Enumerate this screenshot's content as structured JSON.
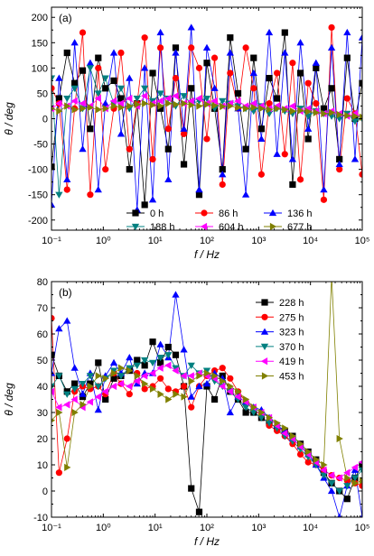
{
  "chart_data": [
    {
      "type": "line",
      "panel_label": "(a)",
      "xlabel": "f / Hz",
      "ylabel": "θ / deg",
      "xscale": "log",
      "xlim": [
        0.1,
        100000
      ],
      "ylim": [
        -220,
        220
      ],
      "yticks": [
        -200,
        -150,
        -100,
        -50,
        0,
        50,
        100,
        150,
        200
      ],
      "xtick_labels": [
        "10⁻¹",
        "10⁰",
        "10¹",
        "10²",
        "10³",
        "10⁴",
        "10⁵"
      ],
      "legend_position": "bottom-right",
      "legend_columns": 3,
      "series": [
        {
          "name": "0 h",
          "color": "#000000",
          "marker": "square",
          "x": [
            0.1,
            0.14,
            0.2,
            0.28,
            0.4,
            0.56,
            0.8,
            1.1,
            1.6,
            2.2,
            3.2,
            4.5,
            6.3,
            9,
            12.7,
            18,
            25,
            36,
            50,
            71,
            100,
            141,
            200,
            282,
            400,
            565,
            800,
            1130,
            1600,
            2260,
            3200,
            4520,
            6400,
            9050,
            12800,
            18100,
            25600,
            36200,
            51200,
            72400,
            100000
          ],
          "y": [
            -95,
            40,
            130,
            70,
            95,
            -20,
            120,
            60,
            75,
            40,
            -100,
            30,
            -170,
            90,
            20,
            -60,
            140,
            -90,
            60,
            -150,
            110,
            20,
            -100,
            160,
            50,
            -60,
            120,
            -20,
            80,
            40,
            170,
            -130,
            90,
            -40,
            100,
            20,
            60,
            -80,
            120,
            0,
            70
          ]
        },
        {
          "name": "86 h",
          "color": "#ff0000",
          "marker": "circle",
          "x": [
            0.1,
            0.14,
            0.2,
            0.28,
            0.4,
            0.56,
            0.8,
            1.1,
            1.6,
            2.2,
            3.2,
            4.5,
            6.3,
            9,
            12.7,
            18,
            25,
            36,
            50,
            71,
            100,
            141,
            200,
            282,
            400,
            565,
            800,
            1130,
            1600,
            2260,
            3200,
            4520,
            6400,
            9050,
            12800,
            18100,
            25600,
            36200,
            51200,
            72400,
            100000
          ],
          "y": [
            60,
            30,
            -140,
            20,
            170,
            -150,
            100,
            -100,
            20,
            130,
            -60,
            30,
            160,
            -80,
            140,
            -20,
            80,
            -30,
            140,
            100,
            -40,
            120,
            -130,
            90,
            20,
            140,
            60,
            -110,
            30,
            90,
            -70,
            110,
            -120,
            70,
            30,
            -160,
            180,
            -100,
            40,
            10,
            -110
          ]
        },
        {
          "name": "136 h",
          "color": "#0000ff",
          "marker": "triangle-up",
          "x": [
            0.1,
            0.14,
            0.2,
            0.28,
            0.4,
            0.56,
            0.8,
            1.1,
            1.6,
            2.2,
            3.2,
            4.5,
            6.3,
            9,
            12.7,
            18,
            25,
            36,
            50,
            71,
            100,
            141,
            200,
            282,
            400,
            565,
            800,
            1130,
            1600,
            2260,
            3200,
            4520,
            6400,
            9050,
            12800,
            18100,
            25600,
            36200,
            51200,
            72400,
            100000
          ],
          "y": [
            -170,
            80,
            -120,
            150,
            -60,
            110,
            -140,
            30,
            130,
            -30,
            80,
            -180,
            100,
            -160,
            170,
            -120,
            130,
            -20,
            180,
            -140,
            140,
            60,
            -110,
            130,
            20,
            -150,
            90,
            -40,
            170,
            -70,
            130,
            -80,
            150,
            -20,
            110,
            -140,
            140,
            -90,
            170,
            -80,
            160
          ]
        },
        {
          "name": "188 h",
          "color": "#008080",
          "marker": "triangle-down",
          "x": [
            0.1,
            0.14,
            0.2,
            0.28,
            0.4,
            0.56,
            0.8,
            1.1,
            1.6,
            2.2,
            3.2,
            4.5,
            6.3,
            9,
            12.7,
            18,
            25,
            36,
            50,
            71,
            100,
            141,
            200,
            282,
            400,
            565,
            800,
            1130,
            1600,
            2260,
            3200,
            4520,
            6400,
            9050,
            12800,
            18100,
            25600,
            36200,
            51200,
            72400,
            100000
          ],
          "y": [
            80,
            -150,
            40,
            60,
            20,
            100,
            50,
            80,
            30,
            60,
            20,
            40,
            60,
            35,
            50,
            40,
            25,
            45,
            30,
            35,
            40,
            20,
            35,
            30,
            25,
            20,
            15,
            25,
            10,
            20,
            15,
            10,
            20,
            5,
            15,
            10,
            5,
            0,
            10,
            -5,
            0
          ]
        },
        {
          "name": "604 h",
          "color": "#ff00ff",
          "marker": "triangle-left",
          "x": [
            0.1,
            0.14,
            0.2,
            0.28,
            0.4,
            0.56,
            0.8,
            1.1,
            1.6,
            2.2,
            3.2,
            4.5,
            6.3,
            9,
            12.7,
            18,
            25,
            36,
            50,
            71,
            100,
            141,
            200,
            282,
            400,
            565,
            800,
            1130,
            1600,
            2260,
            3200,
            4520,
            6400,
            9050,
            12800,
            18100,
            25600,
            36200,
            51200,
            72400,
            100000
          ],
          "y": [
            20,
            30,
            25,
            35,
            30,
            25,
            40,
            20,
            35,
            30,
            40,
            25,
            45,
            30,
            35,
            40,
            45,
            30,
            35,
            40,
            30,
            35,
            25,
            30,
            35,
            25,
            30,
            25,
            20,
            25,
            20,
            25,
            15,
            20,
            15,
            10,
            15,
            10,
            5,
            10,
            5
          ]
        },
        {
          "name": "677 h",
          "color": "#808000",
          "marker": "triangle-right",
          "x": [
            0.1,
            0.14,
            0.2,
            0.28,
            0.4,
            0.56,
            0.8,
            1.1,
            1.6,
            2.2,
            3.2,
            4.5,
            6.3,
            9,
            12.7,
            18,
            25,
            36,
            50,
            71,
            100,
            141,
            200,
            282,
            400,
            565,
            800,
            1130,
            1600,
            2260,
            3200,
            4520,
            6400,
            9050,
            12800,
            18100,
            25600,
            36200,
            51200,
            72400,
            100000
          ],
          "y": [
            20,
            15,
            25,
            18,
            20,
            22,
            18,
            20,
            25,
            22,
            25,
            28,
            30,
            27,
            25,
            30,
            28,
            30,
            27,
            25,
            28,
            26,
            24,
            25,
            22,
            20,
            22,
            20,
            18,
            20,
            18,
            15,
            16,
            14,
            12,
            10,
            12,
            8,
            6,
            5,
            3
          ]
        }
      ]
    },
    {
      "type": "line",
      "panel_label": "(b)",
      "xlabel": "f / Hz",
      "ylabel": "θ / deg",
      "xscale": "log",
      "xlim": [
        0.1,
        100000
      ],
      "ylim": [
        -10,
        80
      ],
      "yticks": [
        -10,
        0,
        10,
        20,
        30,
        40,
        50,
        60,
        70,
        80
      ],
      "xtick_labels": [
        "10⁻¹",
        "10⁰",
        "10¹",
        "10²",
        "10³",
        "10⁴",
        "10⁵"
      ],
      "legend_position": "top-right",
      "legend_columns": 1,
      "series": [
        {
          "name": "228 h",
          "color": "#000000",
          "marker": "square",
          "x": [
            0.1,
            0.14,
            0.2,
            0.28,
            0.4,
            0.56,
            0.8,
            1.1,
            1.6,
            2.2,
            3.2,
            4.5,
            6.3,
            9,
            12.7,
            18,
            25,
            36,
            50,
            71,
            100,
            141,
            200,
            282,
            400,
            565,
            800,
            1130,
            1600,
            2260,
            3200,
            4520,
            6400,
            9050,
            12800,
            18100,
            25600,
            36200,
            51200,
            72400,
            100000
          ],
          "y": [
            52,
            44,
            38,
            41,
            36,
            41,
            49,
            35,
            43,
            44,
            46,
            50,
            48,
            57,
            49,
            55,
            52,
            40,
            1,
            -8,
            40,
            35,
            44,
            38,
            35,
            30,
            30,
            28,
            26,
            24,
            23,
            21,
            18,
            15,
            12,
            7,
            3,
            0,
            -3,
            5,
            10
          ]
        },
        {
          "name": "275 h",
          "color": "#ff0000",
          "marker": "circle",
          "x": [
            0.1,
            0.14,
            0.2,
            0.28,
            0.4,
            0.56,
            0.8,
            1.1,
            1.6,
            2.2,
            3.2,
            4.5,
            6.3,
            9,
            12.7,
            18,
            25,
            36,
            50,
            71,
            100,
            141,
            200,
            282,
            400,
            565,
            800,
            1130,
            1600,
            2260,
            3200,
            4520,
            6400,
            9050,
            12800,
            18100,
            25600,
            36200,
            51200,
            72400,
            100000
          ],
          "y": [
            66,
            7,
            20,
            38,
            40,
            39,
            40,
            37,
            45,
            41,
            37,
            45,
            39,
            40,
            43,
            39,
            38,
            40,
            32,
            40,
            44,
            46,
            47,
            43,
            38,
            34,
            31,
            29,
            25,
            23,
            21,
            18,
            14,
            11,
            10,
            8,
            6,
            5,
            4,
            3,
            2
          ]
        },
        {
          "name": "323 h",
          "color": "#0000ff",
          "marker": "triangle-up",
          "x": [
            0.1,
            0.14,
            0.2,
            0.28,
            0.4,
            0.56,
            0.8,
            1.1,
            1.6,
            2.2,
            3.2,
            4.5,
            6.3,
            9,
            12.7,
            18,
            25,
            36,
            50,
            71,
            100,
            141,
            200,
            282,
            400,
            565,
            800,
            1130,
            1600,
            2260,
            3200,
            4520,
            6400,
            9050,
            12800,
            18100,
            25600,
            36200,
            51200,
            72400,
            100000
          ],
          "y": [
            45,
            62,
            65,
            47,
            37,
            45,
            31,
            44,
            49,
            45,
            51,
            41,
            45,
            45,
            56,
            51,
            75,
            54,
            36,
            40,
            41,
            45,
            43,
            30,
            36,
            34,
            32,
            31,
            28,
            25,
            23,
            20,
            17,
            14,
            10,
            5,
            0,
            -10,
            2,
            8,
            -10
          ]
        },
        {
          "name": "370 h",
          "color": "#008080",
          "marker": "triangle-down",
          "x": [
            0.1,
            0.14,
            0.2,
            0.28,
            0.4,
            0.56,
            0.8,
            1.1,
            1.6,
            2.2,
            3.2,
            4.5,
            6.3,
            9,
            12.7,
            18,
            25,
            36,
            50,
            71,
            100,
            141,
            200,
            282,
            400,
            565,
            800,
            1130,
            1600,
            2260,
            3200,
            4520,
            6400,
            9050,
            12800,
            18100,
            25600,
            36200,
            51200,
            72400,
            100000
          ],
          "y": [
            40,
            44,
            37,
            39,
            41,
            44,
            40,
            43,
            46,
            44,
            47,
            48,
            50,
            49,
            51,
            52,
            47,
            44,
            48,
            45,
            46,
            42,
            40,
            38,
            35,
            32,
            30,
            28,
            26,
            24,
            21,
            19,
            16,
            13,
            10,
            6,
            3,
            0,
            2,
            5,
            8
          ]
        },
        {
          "name": "419 h",
          "color": "#ff00ff",
          "marker": "triangle-left",
          "x": [
            0.1,
            0.14,
            0.2,
            0.28,
            0.4,
            0.56,
            0.8,
            1.1,
            1.6,
            2.2,
            3.2,
            4.5,
            6.3,
            9,
            12.7,
            18,
            25,
            36,
            50,
            71,
            100,
            141,
            200,
            282,
            400,
            565,
            800,
            1130,
            1600,
            2260,
            3200,
            4520,
            6400,
            9050,
            12800,
            18100,
            25600,
            36200,
            51200,
            72400,
            100000
          ],
          "y": [
            38,
            32,
            33,
            35,
            32,
            34,
            36,
            38,
            40,
            41,
            40,
            42,
            44,
            45,
            47,
            48,
            46,
            44,
            44,
            45,
            44,
            43,
            40,
            38,
            36,
            34,
            32,
            30,
            28,
            25,
            22,
            20,
            17,
            14,
            11,
            8,
            6,
            5,
            7,
            9,
            11
          ]
        },
        {
          "name": "453 h",
          "color": "#808000",
          "marker": "triangle-right",
          "x": [
            0.1,
            0.14,
            0.2,
            0.28,
            0.4,
            0.56,
            0.8,
            1.1,
            1.6,
            2.2,
            3.2,
            4.5,
            6.3,
            9,
            12.7,
            18,
            25,
            36,
            50,
            71,
            100,
            141,
            200,
            282,
            400,
            565,
            800,
            1130,
            1600,
            2260,
            3200,
            4520,
            6400,
            9050,
            12800,
            18100,
            25600,
            36200,
            51200,
            72400,
            100000
          ],
          "y": [
            27,
            30,
            9,
            30,
            33,
            40,
            44,
            43,
            45,
            47,
            46,
            44,
            41,
            39,
            37,
            35,
            37,
            36,
            42,
            44,
            45,
            44,
            42,
            40,
            38,
            35,
            32,
            30,
            28,
            26,
            24,
            21,
            18,
            15,
            12,
            10,
            82,
            20,
            5,
            3,
            4
          ]
        }
      ]
    }
  ]
}
